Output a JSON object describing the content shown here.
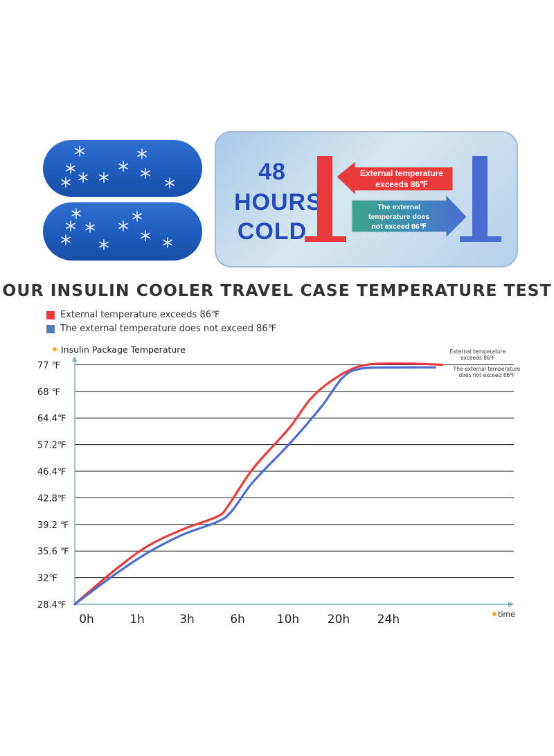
{
  "panel": {
    "big_text": [
      "48",
      "HOURS",
      "COLD"
    ],
    "red_label": [
      "External temperature",
      "exceeds 86℉"
    ],
    "blue_label": [
      "The external",
      "temperature does",
      "not exceed 86℉"
    ]
  },
  "heading": "OUR INSULIN COOLER TRAVEL CASE TEMPERATURE TEST",
  "legend": [
    {
      "label": "External temperature exceeds 86℉",
      "color": "#e83a3a"
    },
    {
      "label": "The external temperature does not exceed 86℉",
      "color": "#4f7db5"
    }
  ],
  "colors": {
    "red": "#e83a3a",
    "blue": "#4a6cd1",
    "axis_dot": "#f5a623",
    "panel_text": "#2549b8"
  },
  "icons": [
    "snowflake-icon"
  ],
  "chart_data": {
    "type": "line",
    "ylabel": "Insulin Package Temperature",
    "xlabel": "time",
    "y_ticks": [
      "28.4℉",
      "32℉",
      "35.6 ℉",
      "39.2 ℉",
      "42.8℉",
      "46.4℉",
      "57.2℉",
      "64.4℉",
      "68 ℉",
      "77 ℉"
    ],
    "x_ticks": [
      "0h",
      "1h",
      "3h",
      "6h",
      "10h",
      "20h",
      "24h"
    ],
    "grid": true,
    "series": [
      {
        "name": "External temperature exceeds 86℉",
        "color": "#e83a3a",
        "points": [
          [
            0,
            0
          ],
          [
            1,
            1.15
          ],
          [
            2,
            2.15
          ],
          [
            3,
            2.8
          ],
          [
            4,
            3.3
          ],
          [
            4.3,
            3.7
          ],
          [
            5,
            5.1
          ],
          [
            6,
            6.6
          ],
          [
            6.6,
            7.7
          ],
          [
            7.2,
            8.4
          ],
          [
            8,
            8.95
          ],
          [
            9,
            9.05
          ],
          [
            10.3,
            9.0
          ]
        ]
      },
      {
        "name": "The external temperature does not exceed 86℉",
        "color": "#4a6cd1",
        "points": [
          [
            0,
            0
          ],
          [
            1,
            1.0
          ],
          [
            2,
            1.9
          ],
          [
            3,
            2.6
          ],
          [
            4,
            3.1
          ],
          [
            4.4,
            3.5
          ],
          [
            5,
            4.6
          ],
          [
            6,
            6.0
          ],
          [
            6.9,
            7.4
          ],
          [
            7.5,
            8.5
          ],
          [
            8,
            8.85
          ],
          [
            9,
            8.9
          ],
          [
            10.1,
            8.9
          ]
        ]
      }
    ],
    "annotations": [
      {
        "text": [
          "External temperature",
          "exceeds 86℉"
        ],
        "series": 0
      },
      {
        "text": [
          "The external temperature",
          "does not exceed 86℉"
        ],
        "series": 1
      }
    ]
  }
}
